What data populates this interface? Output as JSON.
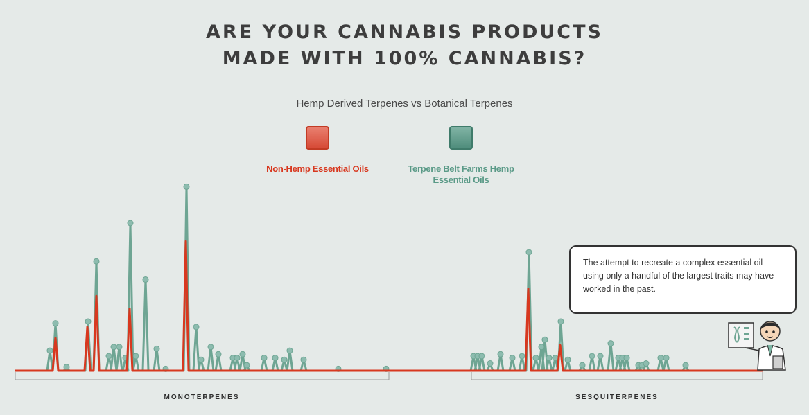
{
  "header": {
    "title": "ARE YOUR CANNABIS PRODUCTS MADE WITH 100% CANNABIS?",
    "subtitle": "Hemp Derived Terpenes vs Botanical Terpenes"
  },
  "legend": {
    "red_label": "Non-Hemp Essential Oils",
    "green_label": "Terpene Belt Farms Hemp Essential Oils"
  },
  "callout": {
    "text": "The attempt to recreate a complex essential oil using only a handful of the largest traits may have worked in the past."
  },
  "colors": {
    "red": "#d8381f",
    "green": "#6ea593",
    "background": "#e5eae8"
  },
  "icons": [
    "scientist-icon",
    "dna-clipboard-icon"
  ],
  "chart_data": {
    "type": "line",
    "title": "ARE YOUR CANNABIS PRODUCTS MADE WITH 100% CANNABIS?",
    "subtitle": "Hemp Derived Terpenes vs Botanical Terpenes",
    "groups": [
      "MONOTERPENES",
      "SESQUITERPENES"
    ],
    "ylim": [
      0,
      100
    ],
    "series": [
      {
        "name": "Non-Hemp Essential Oils",
        "color": "#d8381f",
        "peaks": [
          {
            "x": 80,
            "y": 18
          },
          {
            "x": 126,
            "y": 24
          },
          {
            "x": 139,
            "y": 41
          },
          {
            "x": 187,
            "y": 34
          },
          {
            "x": 268,
            "y": 71
          },
          {
            "x": 762,
            "y": 45
          },
          {
            "x": 808,
            "y": 14
          }
        ]
      },
      {
        "name": "Terpene Belt Farms Hemp Essential Oils",
        "color": "#6ea593",
        "peaks": [
          {
            "x": 72,
            "y": 11
          },
          {
            "x": 80,
            "y": 26
          },
          {
            "x": 96,
            "y": 2
          },
          {
            "x": 127,
            "y": 27
          },
          {
            "x": 139,
            "y": 60
          },
          {
            "x": 157,
            "y": 8
          },
          {
            "x": 164,
            "y": 13
          },
          {
            "x": 172,
            "y": 13
          },
          {
            "x": 181,
            "y": 7
          },
          {
            "x": 188,
            "y": 81
          },
          {
            "x": 196,
            "y": 8
          },
          {
            "x": 210,
            "y": 50
          },
          {
            "x": 226,
            "y": 12
          },
          {
            "x": 239,
            "y": 1
          },
          {
            "x": 269,
            "y": 101
          },
          {
            "x": 283,
            "y": 24
          },
          {
            "x": 290,
            "y": 6
          },
          {
            "x": 304,
            "y": 13
          },
          {
            "x": 315,
            "y": 9
          },
          {
            "x": 336,
            "y": 7
          },
          {
            "x": 342,
            "y": 7
          },
          {
            "x": 350,
            "y": 9
          },
          {
            "x": 356,
            "y": 3
          },
          {
            "x": 381,
            "y": 7
          },
          {
            "x": 397,
            "y": 7
          },
          {
            "x": 410,
            "y": 6
          },
          {
            "x": 418,
            "y": 11
          },
          {
            "x": 438,
            "y": 6
          },
          {
            "x": 488,
            "y": 1
          },
          {
            "x": 557,
            "y": 1
          },
          {
            "x": 683,
            "y": 8
          },
          {
            "x": 689,
            "y": 8
          },
          {
            "x": 695,
            "y": 8
          },
          {
            "x": 707,
            "y": 4
          },
          {
            "x": 722,
            "y": 9
          },
          {
            "x": 739,
            "y": 7
          },
          {
            "x": 753,
            "y": 8
          },
          {
            "x": 763,
            "y": 65
          },
          {
            "x": 773,
            "y": 7
          },
          {
            "x": 781,
            "y": 13
          },
          {
            "x": 786,
            "y": 17
          },
          {
            "x": 792,
            "y": 7
          },
          {
            "x": 801,
            "y": 7
          },
          {
            "x": 809,
            "y": 27
          },
          {
            "x": 819,
            "y": 6
          },
          {
            "x": 840,
            "y": 3
          },
          {
            "x": 854,
            "y": 8
          },
          {
            "x": 866,
            "y": 8
          },
          {
            "x": 881,
            "y": 15
          },
          {
            "x": 892,
            "y": 7
          },
          {
            "x": 898,
            "y": 7
          },
          {
            "x": 904,
            "y": 7
          },
          {
            "x": 921,
            "y": 3
          },
          {
            "x": 926,
            "y": 3
          },
          {
            "x": 932,
            "y": 4
          },
          {
            "x": 953,
            "y": 7
          },
          {
            "x": 961,
            "y": 7
          },
          {
            "x": 989,
            "y": 3
          }
        ]
      }
    ]
  }
}
